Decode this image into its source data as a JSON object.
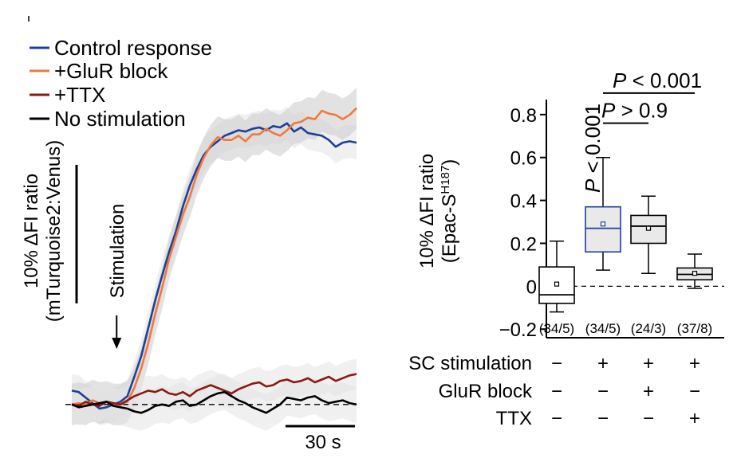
{
  "chart_data": [
    {
      "type": "line",
      "x_unit": "s",
      "x": [
        0,
        3,
        6,
        9,
        12,
        15,
        18,
        21,
        24,
        27,
        30,
        33,
        36,
        39,
        42,
        45,
        48,
        51,
        54,
        57,
        60,
        63,
        66,
        69,
        72,
        75,
        78,
        81,
        84,
        87,
        90,
        93,
        96,
        99,
        102,
        105,
        108,
        111,
        114,
        117,
        120,
        123
      ],
      "series": [
        {
          "name": "Control response",
          "color": "#1f3f99",
          "values": [
            1.0,
            0.9,
            0.5,
            0.1,
            -0.3,
            -0.2,
            0.0,
            0.2,
            0.6,
            2.0,
            3.5,
            5.5,
            7.5,
            9.3,
            11.0,
            12.5,
            14.3,
            15.8,
            17.0,
            18.0,
            18.6,
            19.0,
            19.4,
            19.6,
            19.8,
            19.7,
            19.9,
            20.0,
            19.8,
            20.1,
            20.0,
            20.3,
            19.7,
            20.0,
            19.6,
            19.5,
            19.4,
            19.1,
            18.6,
            18.9,
            19.0,
            18.9
          ]
        },
        {
          "name": "+GluR block",
          "color": "#ee7a40",
          "values": [
            0.0,
            0.1,
            0.0,
            0.3,
            0.1,
            0.2,
            0.0,
            0.0,
            0.2,
            1.2,
            2.6,
            4.4,
            6.5,
            8.4,
            10.5,
            12.1,
            13.7,
            15.0,
            16.6,
            17.8,
            18.7,
            19.3,
            19.1,
            19.1,
            19.4,
            19.0,
            19.5,
            19.5,
            19.9,
            19.6,
            19.4,
            19.8,
            20.3,
            20.4,
            20.7,
            20.6,
            21.2,
            21.0,
            20.9,
            20.6,
            20.9,
            21.4
          ]
        },
        {
          "name": "+TTX",
          "color": "#8a1a12",
          "values": [
            0.0,
            -0.1,
            0.2,
            0.0,
            -0.1,
            0.2,
            0.1,
            0.0,
            0.3,
            0.6,
            0.8,
            1.0,
            0.9,
            1.1,
            0.8,
            0.7,
            0.9,
            0.6,
            1.0,
            1.2,
            1.4,
            1.2,
            1.0,
            0.8,
            1.1,
            1.3,
            1.5,
            1.6,
            1.3,
            1.4,
            1.7,
            1.8,
            1.6,
            1.7,
            1.9,
            1.6,
            1.8,
            2.0,
            1.7,
            1.9,
            2.1,
            2.2
          ]
        },
        {
          "name": "No stimulation",
          "color": "#000000",
          "values": [
            0.0,
            -0.2,
            -0.1,
            0.0,
            0.1,
            0.2,
            -0.1,
            -0.2,
            -0.3,
            -0.5,
            -0.6,
            -0.4,
            -0.1,
            0.0,
            -0.1,
            0.2,
            0.3,
            -0.1,
            0.0,
            0.3,
            0.6,
            0.8,
            0.9,
            0.6,
            0.3,
            0.1,
            -0.2,
            -0.4,
            -0.6,
            -0.3,
            0.0,
            0.5,
            0.4,
            0.3,
            0.5,
            0.6,
            0.3,
            0.1,
            0.2,
            0.3,
            0.1,
            0.0
          ]
        }
      ],
      "stimulation_label": "Stimulation",
      "stimulation_x": 18,
      "ylabel": "10% ΔFI ratio",
      "ylabel_sub": "(mTurquoise2:Venus)",
      "scale_bar_y": 10,
      "scale_bar_x_label": "30 s",
      "scale_bar_x": 30,
      "xlim": [
        0,
        123
      ],
      "ylim": [
        -3,
        24.6
      ]
    },
    {
      "type": "box",
      "ylabel": "10% ΔFI ratio",
      "ylabel_sub_prefix": "(Epac-S",
      "ylabel_sub_sup": "H187",
      "ylabel_sub_suffix": ")",
      "ylim": [
        -0.24,
        0.87
      ],
      "yticks": [
        -0.2,
        0,
        0.2,
        0.4,
        0.6,
        0.8
      ],
      "ytick_labels": [
        "−0.2",
        "0",
        "0.2",
        "0.4",
        "0.6",
        "0.8"
      ],
      "boxes": [
        {
          "whisker_low": -0.12,
          "q1": -0.08,
          "median": -0.04,
          "q3": 0.09,
          "whisker_high": 0.21,
          "mean": 0.01,
          "n": "(34/5)",
          "fill": "#ffffff",
          "edge": "#000000"
        },
        {
          "whisker_low": 0.075,
          "q1": 0.16,
          "median": 0.27,
          "q3": 0.37,
          "whisker_high": 0.6,
          "mean": 0.29,
          "n": "(34/5)",
          "fill": "#e9e9e9",
          "edge": "#1f3f99"
        },
        {
          "whisker_low": 0.06,
          "q1": 0.2,
          "median": 0.28,
          "q3": 0.33,
          "whisker_high": 0.42,
          "mean": 0.27,
          "n": "(24/3)",
          "fill": "#e9e9e9",
          "edge": "#000000"
        },
        {
          "whisker_low": -0.01,
          "q1": 0.03,
          "median": 0.055,
          "q3": 0.085,
          "whisker_high": 0.15,
          "mean": 0.06,
          "n": "(37/8)",
          "fill": "#e9e9e9",
          "edge": "#000000"
        }
      ],
      "conditions": [
        {
          "label": "SC stimulation",
          "values": [
            "−",
            "+",
            "+",
            "+"
          ]
        },
        {
          "label": "GluR block",
          "values": [
            "−",
            "−",
            "+",
            "−"
          ]
        },
        {
          "label": "TTX",
          "values": [
            "−",
            "−",
            "−",
            "+"
          ]
        }
      ],
      "annotations": [
        {
          "text_P": "P",
          "text_rest": " < 0.001",
          "between": [
            2,
            4
          ],
          "level": 0.9
        },
        {
          "text_P": "P",
          "text_rest": " > 0.9",
          "between": [
            2,
            3
          ],
          "level": 0.76
        },
        {
          "text_P": "P",
          "text_rest": " < 0.001",
          "above": 2,
          "vertical": true
        }
      ]
    }
  ]
}
